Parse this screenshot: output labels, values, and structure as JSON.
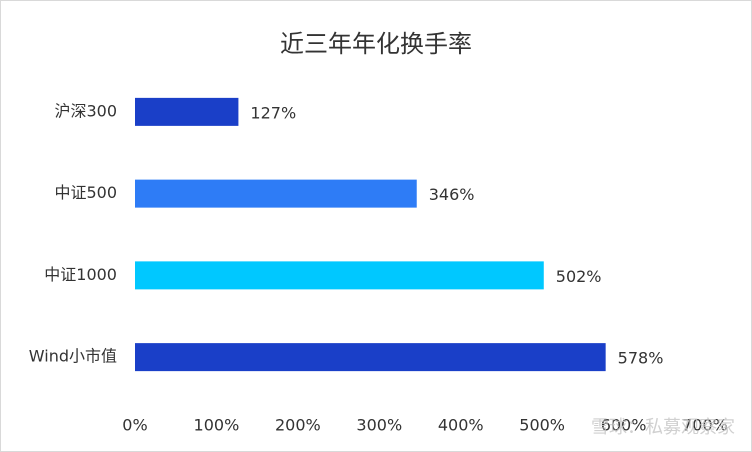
{
  "chart_data": {
    "type": "barh",
    "title": "近三年年化换手率",
    "categories": [
      "沪深300",
      "中证500",
      "中证1000",
      "Wind小市值"
    ],
    "values": [
      127,
      346,
      502,
      578
    ],
    "value_labels": [
      "127%",
      "346%",
      "502%",
      "578%"
    ],
    "colors": [
      "#1a3fc8",
      "#2e7cf6",
      "#00c8ff",
      "#1a3fc8"
    ],
    "xlim": [
      0,
      700
    ],
    "xticks": [
      {
        "value": 0,
        "label": "0%"
      },
      {
        "value": 100,
        "label": "100%"
      },
      {
        "value": 200,
        "label": "200%"
      },
      {
        "value": 300,
        "label": "300%"
      },
      {
        "value": 400,
        "label": "400%"
      },
      {
        "value": 500,
        "label": "500%"
      },
      {
        "value": 600,
        "label": "600%"
      },
      {
        "value": 700,
        "label": "700%"
      }
    ],
    "grid": false,
    "watermark": "雪球：私募观察家"
  }
}
